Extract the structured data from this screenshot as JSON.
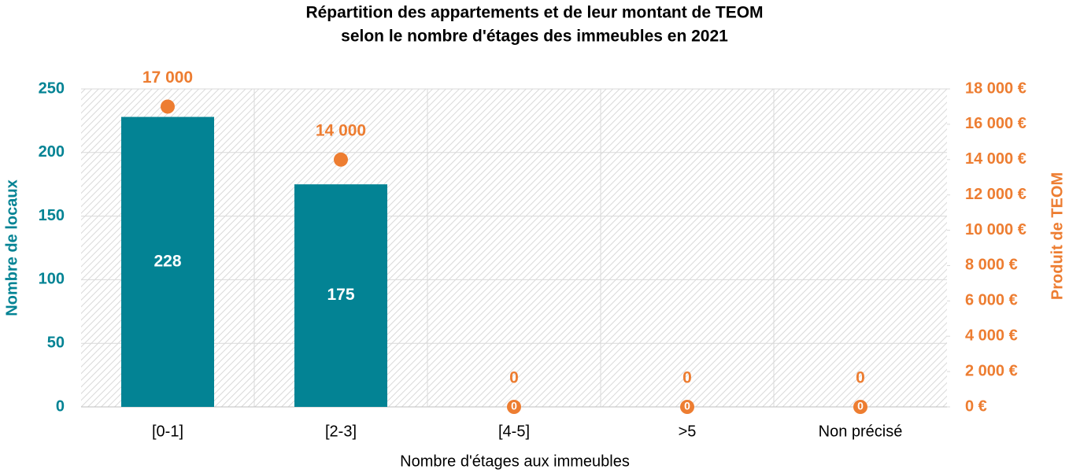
{
  "chart_data": {
    "type": "bar",
    "title": [
      "Répartition des appartements et de leur montant de TEOM",
      "selon le nombre d'étages des immeubles en 2021"
    ],
    "x_label": "Nombre d'étages aux immeubles",
    "y_label": "Nombre de locaux",
    "y2_label": "Produit de TEOM",
    "categories": [
      "[0-1]",
      "[2-3]",
      "[4-5]",
      ">5",
      "Non précisé"
    ],
    "series": [
      {
        "type": "bar",
        "color": "#038394",
        "values": [
          228,
          175,
          0,
          0,
          0
        ]
      },
      {
        "type": "scatter",
        "axis": "y2",
        "color": "#ED7D31",
        "values": [
          17000,
          14000,
          0,
          0,
          0
        ],
        "value_labels": [
          "17 000",
          "14 000",
          "0",
          "0",
          "0"
        ]
      }
    ],
    "ylim": [
      0,
      250
    ],
    "yticks": [
      0,
      50,
      100,
      150,
      200,
      250
    ],
    "y2lim": [
      0,
      18000
    ],
    "y2ticks": [
      {
        "value": 0,
        "label": "0 €"
      },
      {
        "value": 2000,
        "label": "2 000 €"
      },
      {
        "value": 4000,
        "label": "4 000 €"
      },
      {
        "value": 6000,
        "label": "6 000 €"
      },
      {
        "value": 8000,
        "label": "8 000 €"
      },
      {
        "value": 10000,
        "label": "10 000 €"
      },
      {
        "value": 12000,
        "label": "12 000 €"
      },
      {
        "value": 14000,
        "label": "14 000 €"
      },
      {
        "value": 16000,
        "label": "16 000 €"
      },
      {
        "value": 18000,
        "label": "18 000 €"
      }
    ],
    "grid": true
  }
}
